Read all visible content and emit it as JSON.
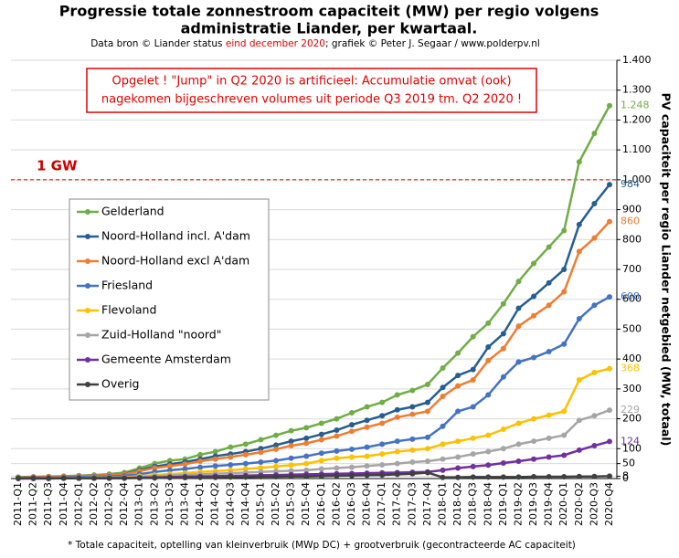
{
  "chart_data": {
    "type": "line",
    "title": [
      "Progressie totale zonnestroom capaciteit (MW) per regio volgens",
      "administratie  Liander, per kwartaal."
    ],
    "subtitle_parts": [
      {
        "text": "Data bron © Liander status ",
        "color": "#000000"
      },
      {
        "text": "eind december 2020",
        "color": "#e00000"
      },
      {
        "text": "; grafiek © Peter J. Segaar / www.polderpv.nl",
        "color": "#000000"
      }
    ],
    "annotation": [
      "Opgelet ! \"Jump\" in Q2 2020 is artificieel: Accumulatie omvat (ook)",
      "nagekomen  bijgeschreven volumes uit periode Q3 2019 tm. Q2 2020 !"
    ],
    "reference_line": {
      "value": 1000,
      "label": "1 GW",
      "color": "#cc0000"
    },
    "y_axis_label": "PV capaciteit per regio Liander netgebied (MW, totaal)",
    "footnote": "* Totale capaciteit, optelling van kleinverbruik (MWp DC) + grootverbruik (gecontracteerde AC capaciteit)",
    "categories": [
      "2011-Q1",
      "2011-Q2",
      "2011-Q3",
      "2011-Q4",
      "2012-Q1",
      "2012-Q2",
      "2012-Q3",
      "2012-Q4",
      "2013-Q1",
      "2013-Q2",
      "2013-Q3",
      "2013-Q4",
      "2014-Q1",
      "2014-Q2",
      "2014-Q3",
      "2014-Q4",
      "2015-Q1",
      "2015-Q2",
      "2015-Q3",
      "2015-Q4",
      "2016-Q1",
      "2016-Q2",
      "2016-Q3",
      "2016-Q4",
      "2017-Q1",
      "2017-Q2",
      "2017-Q3",
      "2017-Q4",
      "2018-Q1",
      "2018-Q2",
      "2018-Q3",
      "2018-Q4",
      "2019-Q1",
      "2019-Q2",
      "2019-Q3",
      "2019-Q4",
      "2020-Q1",
      "2020-Q2",
      "2020-Q3",
      "2020-Q4"
    ],
    "ylim": [
      0,
      1400
    ],
    "yticks": [
      0,
      8,
      50,
      100,
      200,
      300,
      400,
      500,
      600,
      700,
      800,
      900,
      {
        "value": 1000,
        "label": "1.000"
      },
      {
        "value": 1100,
        "label": "1.100"
      },
      {
        "value": 1200,
        "label": "1.200"
      },
      {
        "value": 1300,
        "label": "1.300"
      },
      {
        "value": 1400,
        "label": "1.400"
      }
    ],
    "grid": true,
    "legend_position": "left",
    "series": [
      {
        "name": "Gelderland",
        "color": "#70ad47",
        "values": [
          5,
          6,
          7,
          8,
          10,
          12,
          15,
          20,
          35,
          50,
          60,
          65,
          80,
          90,
          105,
          115,
          130,
          145,
          160,
          170,
          185,
          200,
          220,
          240,
          255,
          280,
          295,
          315,
          370,
          420,
          475,
          520,
          585,
          660,
          720,
          775,
          830,
          1060,
          1155,
          1248
        ],
        "value_labels": [
          null,
          null,
          null,
          null,
          null,
          null,
          null,
          null,
          null,
          null,
          null,
          null,
          null,
          null,
          null,
          null,
          null,
          null,
          null,
          null,
          null,
          null,
          null,
          null,
          null,
          null,
          null,
          null,
          null,
          null,
          null,
          null,
          null,
          null,
          null,
          null,
          null,
          null,
          null,
          "1.248"
        ]
      },
      {
        "name": "Noord-Holland incl. A'dam",
        "color": "#255e91",
        "values": [
          4,
          5,
          6,
          7,
          8,
          10,
          12,
          15,
          28,
          40,
          48,
          55,
          65,
          75,
          82,
          90,
          100,
          112,
          125,
          135,
          148,
          162,
          180,
          195,
          210,
          230,
          240,
          255,
          305,
          345,
          365,
          440,
          485,
          570,
          610,
          655,
          700,
          850,
          920,
          984
        ],
        "value_labels": [
          null,
          null,
          null,
          null,
          null,
          null,
          null,
          null,
          null,
          null,
          null,
          null,
          null,
          null,
          null,
          null,
          null,
          null,
          null,
          null,
          null,
          null,
          null,
          null,
          null,
          null,
          null,
          null,
          null,
          null,
          null,
          null,
          null,
          null,
          null,
          null,
          null,
          null,
          null,
          "984"
        ]
      },
      {
        "name": "Noord-Holland excl A'dam",
        "color": "#ed7d31",
        "values": [
          4,
          5,
          6,
          7,
          8,
          10,
          12,
          14,
          25,
          35,
          42,
          48,
          58,
          65,
          72,
          80,
          88,
          98,
          110,
          118,
          130,
          142,
          158,
          172,
          185,
          205,
          215,
          225,
          275,
          310,
          330,
          395,
          435,
          510,
          545,
          580,
          625,
          760,
          805,
          860
        ],
        "value_labels": [
          null,
          null,
          null,
          null,
          null,
          null,
          null,
          null,
          null,
          null,
          null,
          null,
          null,
          null,
          null,
          null,
          null,
          null,
          null,
          null,
          null,
          null,
          null,
          null,
          null,
          null,
          null,
          null,
          null,
          null,
          null,
          null,
          null,
          null,
          null,
          null,
          null,
          null,
          null,
          "860"
        ]
      },
      {
        "name": "Friesland",
        "color": "#4472c4",
        "values": [
          2,
          3,
          3,
          4,
          5,
          6,
          7,
          9,
          15,
          22,
          28,
          32,
          38,
          42,
          46,
          50,
          55,
          60,
          68,
          75,
          85,
          92,
          98,
          105,
          115,
          125,
          132,
          138,
          175,
          225,
          240,
          280,
          340,
          390,
          405,
          425,
          450,
          535,
          580,
          608
        ],
        "value_labels": [
          null,
          null,
          null,
          null,
          null,
          null,
          null,
          null,
          null,
          null,
          null,
          null,
          null,
          null,
          null,
          null,
          null,
          null,
          null,
          null,
          null,
          null,
          null,
          null,
          null,
          null,
          null,
          null,
          null,
          null,
          null,
          null,
          null,
          null,
          null,
          null,
          null,
          null,
          null,
          "608"
        ]
      },
      {
        "name": "Flevoland",
        "color": "#ffc000",
        "values": [
          1,
          1,
          2,
          2,
          2,
          3,
          3,
          4,
          8,
          12,
          15,
          18,
          22,
          25,
          28,
          32,
          36,
          40,
          45,
          50,
          60,
          68,
          72,
          75,
          82,
          90,
          95,
          100,
          115,
          125,
          135,
          145,
          165,
          185,
          200,
          212,
          225,
          330,
          355,
          368
        ],
        "value_labels": [
          null,
          null,
          null,
          null,
          null,
          null,
          null,
          null,
          null,
          null,
          null,
          null,
          null,
          null,
          null,
          null,
          null,
          null,
          null,
          null,
          null,
          null,
          null,
          null,
          null,
          null,
          null,
          null,
          null,
          null,
          null,
          null,
          null,
          null,
          null,
          null,
          null,
          null,
          null,
          "368"
        ]
      },
      {
        "name": "Zuid-Holland \"noord\"",
        "color": "#a5a5a5",
        "values": [
          0,
          1,
          1,
          1,
          1,
          1,
          2,
          2,
          5,
          8,
          10,
          12,
          14,
          16,
          18,
          20,
          22,
          24,
          26,
          28,
          32,
          35,
          38,
          42,
          46,
          50,
          55,
          58,
          65,
          72,
          82,
          90,
          100,
          115,
          125,
          135,
          145,
          195,
          210,
          229
        ],
        "value_labels": [
          null,
          null,
          null,
          null,
          null,
          null,
          null,
          null,
          null,
          null,
          null,
          null,
          null,
          null,
          null,
          null,
          null,
          null,
          null,
          null,
          null,
          null,
          null,
          null,
          null,
          null,
          null,
          null,
          null,
          null,
          null,
          null,
          null,
          null,
          null,
          null,
          null,
          null,
          null,
          "229"
        ]
      },
      {
        "name": "Gemeente Amsterdam",
        "color": "#7030a0",
        "values": [
          0,
          0,
          0,
          1,
          1,
          1,
          1,
          2,
          3,
          4,
          5,
          6,
          7,
          8,
          9,
          10,
          11,
          12,
          13,
          14,
          15,
          16,
          17,
          18,
          19,
          20,
          21,
          22,
          28,
          35,
          40,
          45,
          52,
          58,
          65,
          72,
          78,
          95,
          110,
          124
        ],
        "value_labels": [
          null,
          null,
          null,
          null,
          null,
          null,
          null,
          null,
          null,
          null,
          null,
          null,
          null,
          null,
          null,
          null,
          null,
          null,
          null,
          null,
          null,
          null,
          null,
          null,
          null,
          null,
          null,
          null,
          null,
          null,
          null,
          null,
          null,
          null,
          null,
          null,
          null,
          null,
          null,
          "124"
        ]
      },
      {
        "name": "Overig",
        "color": "#404040",
        "values": [
          1,
          1,
          1,
          1,
          1,
          1,
          1,
          1,
          2,
          2,
          3,
          3,
          4,
          4,
          5,
          5,
          6,
          6,
          7,
          7,
          8,
          9,
          10,
          11,
          12,
          14,
          16,
          20,
          4,
          4,
          5,
          5,
          5,
          5,
          6,
          6,
          6,
          7,
          7,
          8
        ]
      }
    ]
  }
}
